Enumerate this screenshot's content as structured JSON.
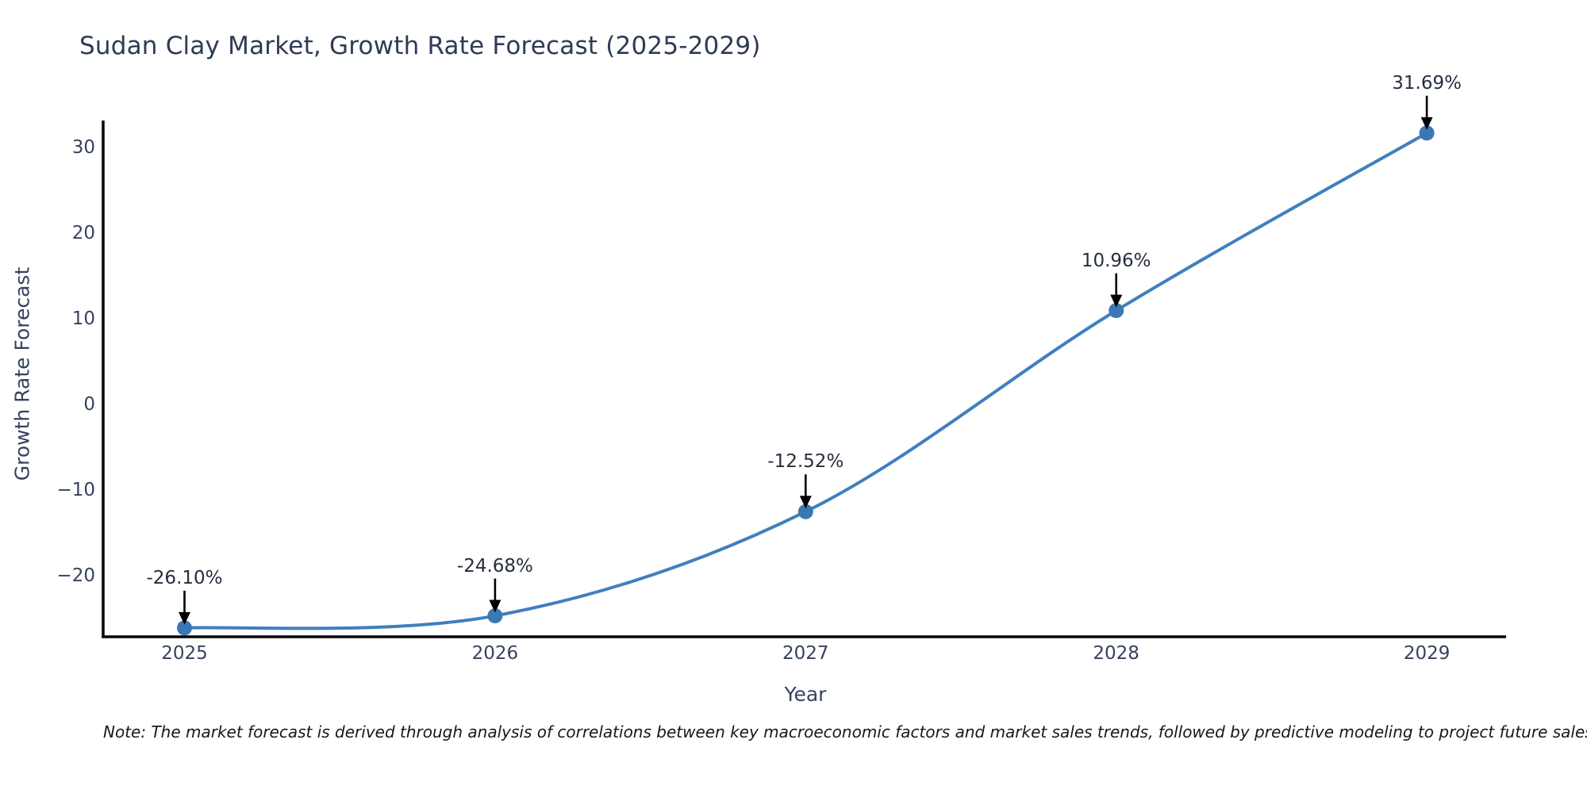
{
  "page": {
    "title": "Sudan Clay Market, Growth Rate Forecast (2025-2029)",
    "note": "Note: The market forecast is derived through analysis of correlations between key macroeconomic factors and market sales trends, followed by predictive modeling to project future sales"
  },
  "chart_data": {
    "type": "line",
    "title": "Sudan Clay Market, Growth Rate Forecast (2025-2029)",
    "xlabel": "Year",
    "ylabel": "Growth Rate Forecast",
    "x": [
      2025,
      2026,
      2027,
      2028,
      2029
    ],
    "categories": [
      "2025",
      "2026",
      "2027",
      "2028",
      "2029"
    ],
    "values": [
      -26.1,
      -24.68,
      -12.52,
      10.96,
      31.69
    ],
    "point_labels": [
      "-26.10%",
      "-24.68%",
      "-12.52%",
      "10.96%",
      "31.69%"
    ],
    "yticks": [
      {
        "value": 30,
        "label": "30"
      },
      {
        "value": 20,
        "label": "20"
      },
      {
        "value": 10,
        "label": "10"
      },
      {
        "value": 0,
        "label": "0"
      },
      {
        "value": -10,
        "label": "−10"
      },
      {
        "value": -20,
        "label": "−20"
      }
    ],
    "ylim": [
      -27,
      33
    ],
    "grid": false,
    "legend": false,
    "line_shape": "spline",
    "colors": {
      "line": "#3f7fbe",
      "marker": "#3a78b5",
      "axis": "#000000",
      "annotation_arrow": "#000000",
      "text": "#36425e",
      "title_text": "#2e3b55"
    }
  }
}
